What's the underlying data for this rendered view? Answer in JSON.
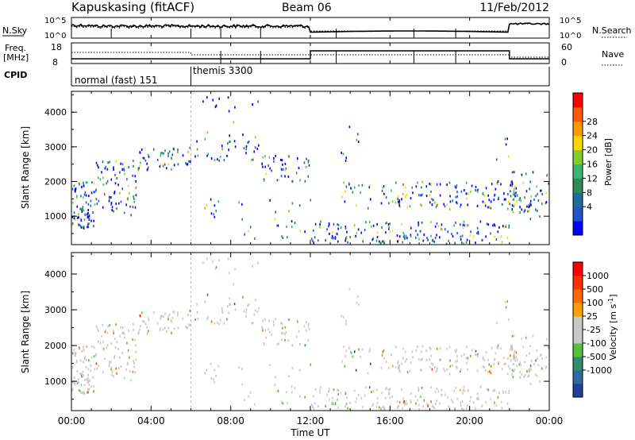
{
  "header": {
    "station": "Kapuskasing (fitACF)",
    "beam": "Beam 06",
    "date": "11/Feb/2012"
  },
  "chart_data": [
    {
      "type": "line",
      "panel": "noise",
      "left_label": "N.Sky",
      "right_label": "N.Search",
      "left_ticks": [
        "10^5",
        "10^0"
      ],
      "right_ticks": [
        "10^5",
        "10^0"
      ],
      "xlim": [
        0,
        24
      ],
      "x_ticks_hours": [
        0,
        4,
        8,
        12,
        16,
        20,
        24
      ]
    },
    {
      "type": "line",
      "panel": "frequency",
      "left_label": [
        "Freq.",
        "[MHz]"
      ],
      "right_label": "Nave",
      "left_ticks": [
        "18",
        "8"
      ],
      "right_ticks": [
        "60",
        "0"
      ],
      "xlim": [
        0,
        24
      ]
    },
    {
      "type": "table",
      "panel": "cpid",
      "label": "CPID",
      "segments": [
        {
          "start": 0,
          "end": 6,
          "label": "normal (fast) 151"
        },
        {
          "start": 6,
          "end": 24,
          "label": "themis 3300"
        }
      ]
    },
    {
      "type": "heatmap",
      "panel": "power",
      "ylabel": "Slant Range [km]",
      "xlim": [
        0,
        24
      ],
      "ylim": [
        180,
        4600
      ],
      "y_ticks": [
        "1000",
        "2000",
        "3000",
        "4000"
      ],
      "colorbar": {
        "label": "Power [dB]",
        "ticks": [
          "4",
          "8",
          "12",
          "16",
          "20",
          "24",
          "28"
        ],
        "colors": [
          "#0000ff",
          "#2255cc",
          "#1d6e9a",
          "#2e8b57",
          "#3cb371",
          "#7fcf2a",
          "#ffd700",
          "#ff9900",
          "#ff5a00",
          "#ff0000"
        ]
      }
    },
    {
      "type": "heatmap",
      "panel": "velocity",
      "ylabel": "Slant Range [km]",
      "xlim": [
        0,
        24
      ],
      "ylim": [
        180,
        4600
      ],
      "y_ticks": [
        "1000",
        "2000",
        "3000",
        "4000"
      ],
      "colorbar": {
        "label": "Velocity [m s",
        "label_sup": "-1",
        "label_close": "]",
        "ticks": [
          "1000",
          "500",
          "100",
          "25",
          "-25",
          "-100",
          "-500",
          "-1000"
        ],
        "colors": [
          "#1f3f99",
          "#2f6aa0",
          "#2f8e6a",
          "#55c03a",
          "#c8c8c8",
          "#c8c8c8",
          "#ffa000",
          "#ff6a00",
          "#ff3000",
          "#ff0000"
        ]
      }
    }
  ],
  "x_axis": {
    "tick_labels": [
      "00:00",
      "04:00",
      "08:00",
      "12:00",
      "16:00",
      "20:00",
      "00:00"
    ],
    "title": "Time UT"
  }
}
